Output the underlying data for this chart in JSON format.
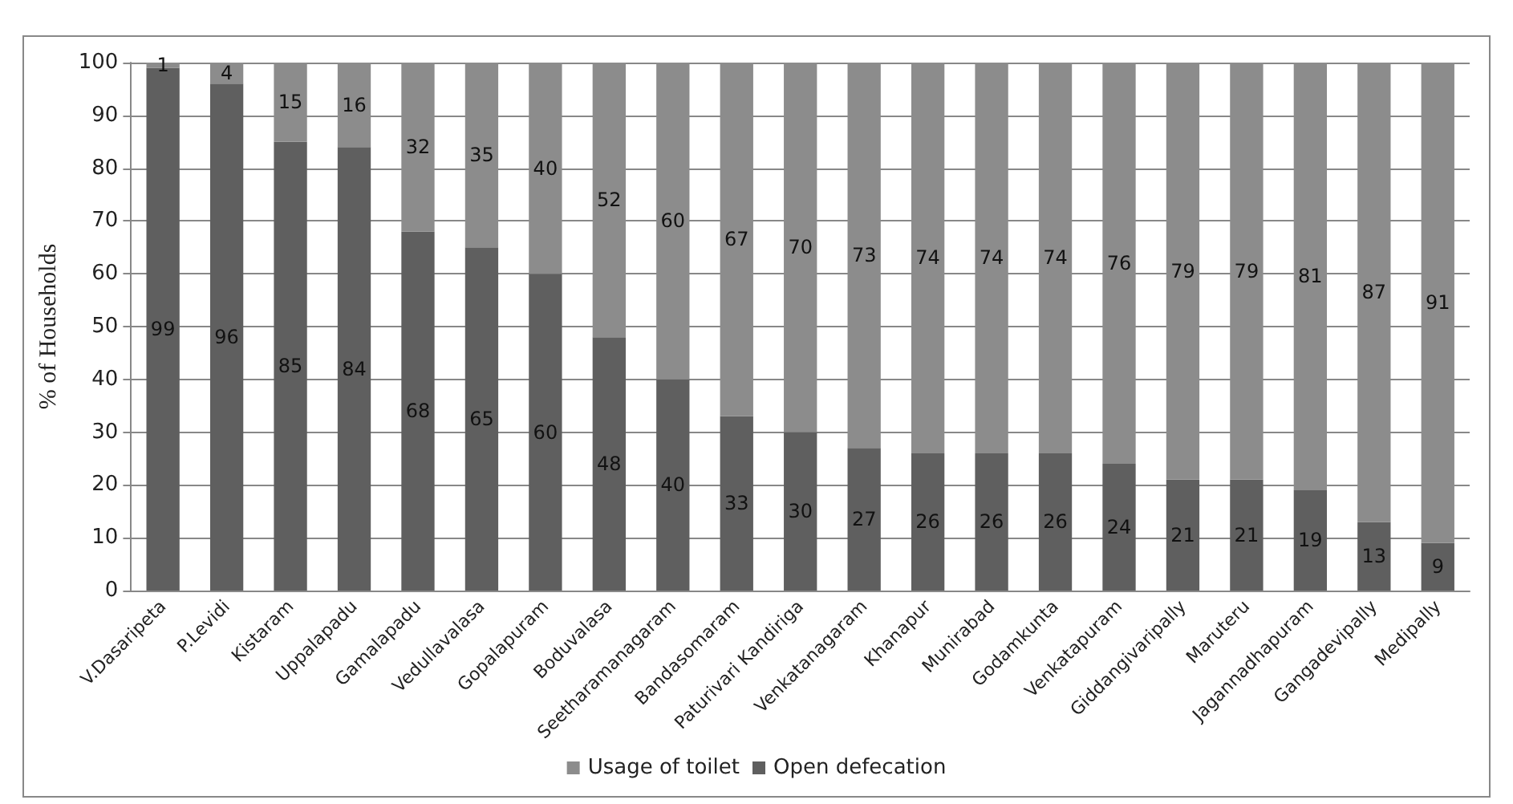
{
  "chart_data": {
    "type": "bar",
    "stacked": true,
    "ylabel": "% of Households",
    "categories": [
      "V.Dasaripeta",
      "P.Levidi",
      "Kistaram",
      "Uppalapadu",
      "Gamalapadu",
      "Vedullavalasa",
      "Gopalapuram",
      "Boduvalasa",
      "Seetharamanagaram",
      "Bandasomaram",
      "Paturivari Kandiriga",
      "Venkatanagaram",
      "Khanapur",
      "Munirabad",
      "Godamkunta",
      "Venkatapuram",
      "Giddangivaripally",
      "Maruteru",
      "Jagannadhapuram",
      "Gangadevipally",
      "Medipally"
    ],
    "series": [
      {
        "name": "Open defecation",
        "color": "#5f5f5f",
        "values": [
          99,
          96,
          85,
          84,
          68,
          65,
          60,
          48,
          40,
          33,
          30,
          27,
          26,
          26,
          26,
          24,
          21,
          21,
          19,
          13,
          9
        ]
      },
      {
        "name": "Usage of toilet",
        "color": "#8c8c8c",
        "values": [
          1,
          4,
          15,
          16,
          32,
          35,
          40,
          52,
          60,
          67,
          70,
          73,
          74,
          74,
          74,
          76,
          79,
          79,
          81,
          87,
          91
        ]
      }
    ],
    "ylim": [
      0,
      100
    ],
    "yticks": [
      0,
      10,
      20,
      30,
      40,
      50,
      60,
      70,
      80,
      90,
      100
    ],
    "grid": "y",
    "legend": "bottom",
    "data_labels": true
  }
}
